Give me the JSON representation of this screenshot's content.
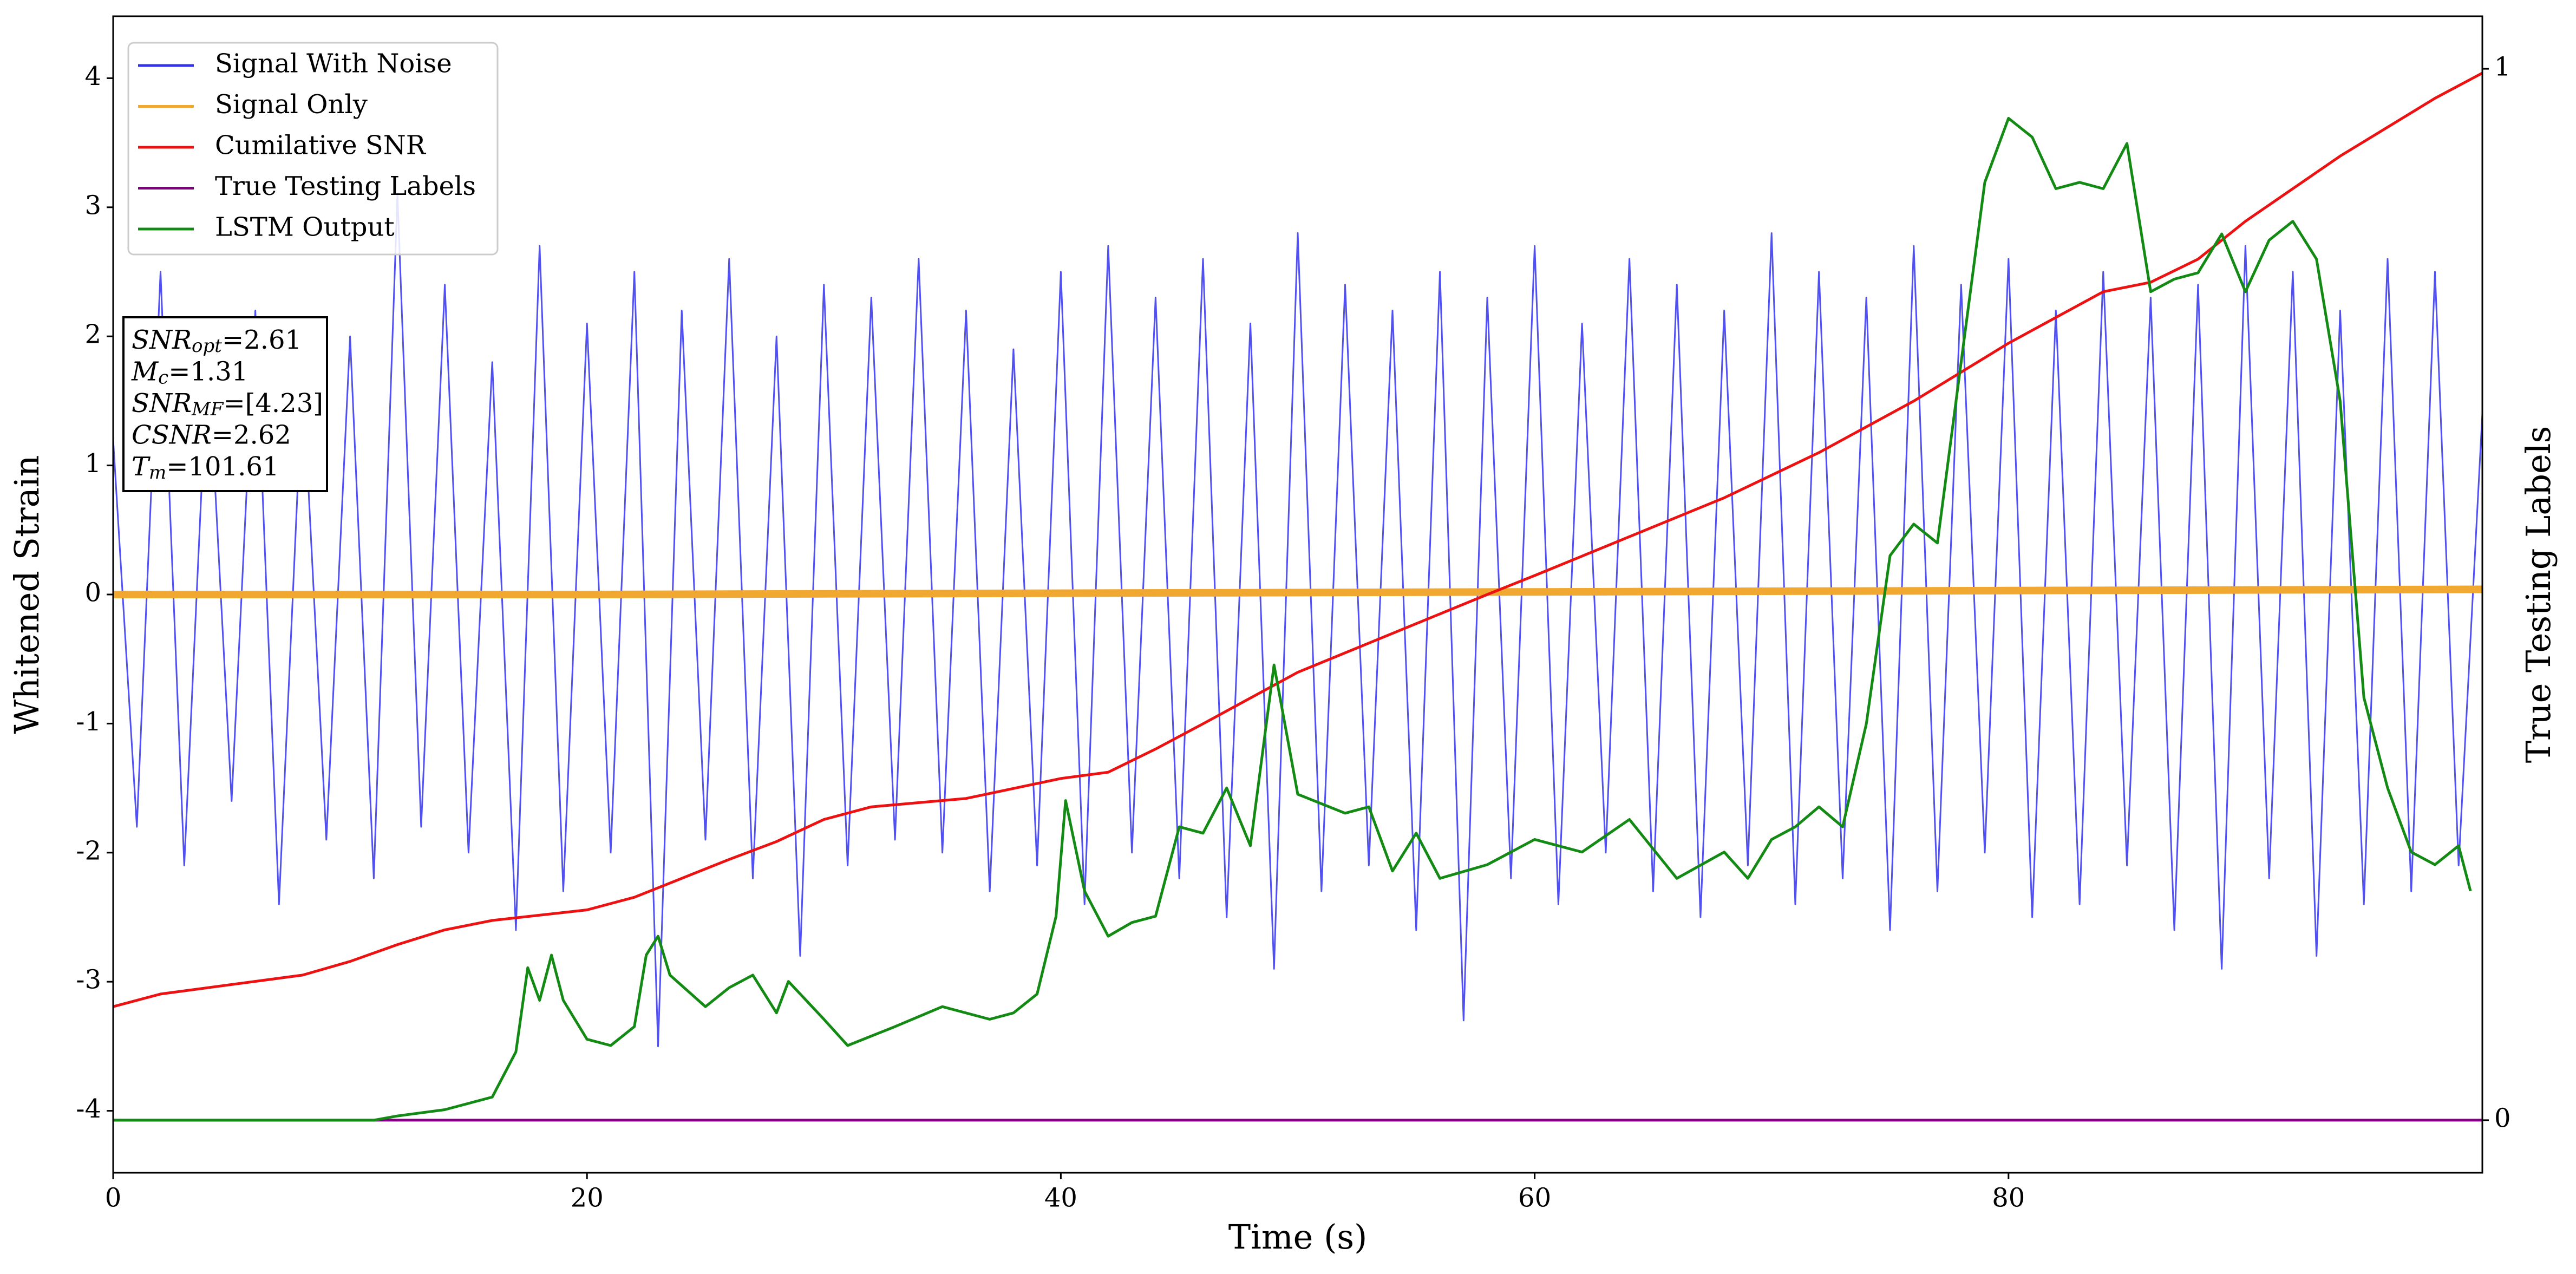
{
  "chart_data": {
    "type": "line",
    "xlabel": "Time (s)",
    "ylabel": "Whitened Strain",
    "y2label": "True Testing Labels",
    "xlim": [
      0,
      100
    ],
    "xticks": [
      0,
      20,
      40,
      60,
      80
    ],
    "ylim": [
      -4.48,
      4.48
    ],
    "yticks": [
      -4,
      -3,
      -2,
      -1,
      0,
      1,
      2,
      3,
      4
    ],
    "y2lim": [
      -0.05,
      1.05
    ],
    "y2ticks": [
      0,
      1
    ],
    "legend": "upper-left",
    "series": [
      {
        "name": "Signal With Noise",
        "color": "#3333ee",
        "x": [
          0,
          1,
          2,
          3,
          4,
          5,
          6,
          7,
          8,
          9,
          10,
          11,
          12,
          13,
          14,
          15,
          16,
          17,
          18,
          19,
          20,
          21,
          22,
          23,
          24,
          25,
          26,
          27,
          28,
          29,
          30,
          31,
          32,
          33,
          34,
          35,
          36,
          37,
          38,
          39,
          40,
          41,
          42,
          43,
          44,
          45,
          46,
          47,
          48,
          49,
          50,
          51,
          52,
          53,
          54,
          55,
          56,
          57,
          58,
          59,
          60,
          61,
          62,
          63,
          64,
          65,
          66,
          67,
          68,
          69,
          70,
          71,
          72,
          73,
          74,
          75,
          76,
          77,
          78,
          79,
          80,
          81,
          82,
          83,
          84,
          85,
          86,
          87,
          88,
          89,
          90,
          91,
          92,
          93,
          94,
          95,
          96,
          97,
          98,
          99,
          100
        ],
        "values": [
          1.2,
          -1.8,
          2.5,
          -2.1,
          1.9,
          -1.6,
          2.2,
          -2.4,
          1.7,
          -1.9,
          2.0,
          -2.2,
          3.1,
          -1.8,
          2.4,
          -2.0,
          1.8,
          -2.6,
          2.7,
          -2.3,
          2.1,
          -2.0,
          2.5,
          -3.5,
          2.2,
          -1.9,
          2.6,
          -2.2,
          2.0,
          -2.8,
          2.4,
          -2.1,
          2.3,
          -1.9,
          2.6,
          -2.0,
          2.2,
          -2.3,
          1.9,
          -2.1,
          2.5,
          -2.4,
          2.7,
          -2.0,
          2.3,
          -2.2,
          2.6,
          -2.5,
          2.1,
          -2.9,
          2.8,
          -2.3,
          2.4,
          -2.1,
          2.2,
          -2.6,
          2.5,
          -3.3,
          2.3,
          -2.2,
          2.7,
          -2.4,
          2.1,
          -2.0,
          2.6,
          -2.3,
          2.4,
          -2.5,
          2.2,
          -2.1,
          2.8,
          -2.4,
          2.5,
          -2.2,
          2.3,
          -2.6,
          2.7,
          -2.3,
          2.4,
          -2.0,
          2.6,
          -2.5,
          2.2,
          -2.4,
          2.5,
          -2.1,
          2.3,
          -2.6,
          2.4,
          -2.9,
          2.7,
          -2.2,
          2.5,
          -2.8,
          2.2,
          -2.4,
          2.6,
          -2.3,
          2.5,
          -2.1,
          1.4
        ]
      },
      {
        "name": "Signal Only",
        "color": "#f0a830",
        "x": [
          0,
          20,
          40,
          60,
          80,
          100
        ],
        "values": [
          0,
          0,
          0.01,
          0.02,
          0.03,
          0.04
        ]
      },
      {
        "name": "Cumilative SNR",
        "color": "#ee1111",
        "axis": "y2",
        "x": [
          0,
          2,
          4,
          8,
          10,
          12,
          14,
          16,
          20,
          22,
          24,
          26,
          28,
          30,
          32,
          36,
          40,
          42,
          44,
          46,
          50,
          54,
          58,
          60,
          64,
          68,
          72,
          76,
          80,
          84,
          86,
          88,
          90,
          94,
          98,
          100
        ],
        "values": [
          0.108,
          0.12,
          0.126,
          0.138,
          0.151,
          0.167,
          0.181,
          0.19,
          0.2,
          0.212,
          0.23,
          0.248,
          0.265,
          0.286,
          0.298,
          0.306,
          0.325,
          0.331,
          0.353,
          0.377,
          0.426,
          0.463,
          0.5,
          0.518,
          0.555,
          0.592,
          0.635,
          0.684,
          0.739,
          0.788,
          0.797,
          0.819,
          0.855,
          0.917,
          0.972,
          0.996
        ]
      },
      {
        "name": "True Testing Labels",
        "color": "#800080",
        "axis": "y2",
        "x": [
          0,
          100
        ],
        "values": [
          0,
          0
        ]
      },
      {
        "name": "LSTM Output",
        "color": "#138a13",
        "axis": "y2",
        "x": [
          0,
          11,
          12,
          14,
          16,
          17,
          17.5,
          18,
          18.5,
          19,
          20,
          21,
          22,
          22.5,
          23,
          23.5,
          25,
          26,
          27,
          28,
          28.5,
          30,
          31,
          33,
          35,
          37,
          38,
          39,
          39.8,
          40.2,
          41,
          42,
          43,
          44,
          45,
          46,
          47,
          48,
          49,
          50,
          52,
          53,
          54,
          55,
          56,
          58,
          60,
          62,
          64,
          66,
          68,
          69,
          70,
          71,
          72,
          73,
          74,
          75,
          76,
          77,
          78,
          79,
          80,
          81,
          82,
          83,
          84,
          85,
          86,
          87,
          88,
          89,
          90,
          91,
          92,
          93,
          94,
          95,
          96,
          97,
          98,
          99,
          99.5
        ],
        "values": [
          0,
          0,
          0.004,
          0.01,
          0.022,
          0.065,
          0.145,
          0.114,
          0.157,
          0.114,
          0.077,
          0.071,
          0.089,
          0.157,
          0.175,
          0.138,
          0.108,
          0.126,
          0.138,
          0.102,
          0.132,
          0.096,
          0.071,
          0.089,
          0.108,
          0.096,
          0.102,
          0.12,
          0.194,
          0.304,
          0.218,
          0.175,
          0.188,
          0.194,
          0.279,
          0.273,
          0.316,
          0.261,
          0.433,
          0.31,
          0.292,
          0.298,
          0.237,
          0.273,
          0.23,
          0.243,
          0.267,
          0.255,
          0.286,
          0.23,
          0.255,
          0.23,
          0.267,
          0.279,
          0.298,
          0.279,
          0.377,
          0.537,
          0.567,
          0.549,
          0.721,
          0.892,
          0.953,
          0.935,
          0.886,
          0.892,
          0.886,
          0.929,
          0.788,
          0.8,
          0.806,
          0.843,
          0.788,
          0.837,
          0.855,
          0.819,
          0.684,
          0.402,
          0.316,
          0.255,
          0.243,
          0.261,
          0.218
        ]
      }
    ],
    "annotations": [
      {
        "name": "SNR",
        "sub": "opt",
        "text": "=2.61"
      },
      {
        "name": "M",
        "sub": "c",
        "text": "=1.31"
      },
      {
        "name": "SNR",
        "sub": "MF",
        "text": "=[4.23]"
      },
      {
        "name": "CSNR",
        "text": "=2.62"
      },
      {
        "name": "T",
        "sub": "m",
        "text": "=101.61"
      }
    ]
  }
}
